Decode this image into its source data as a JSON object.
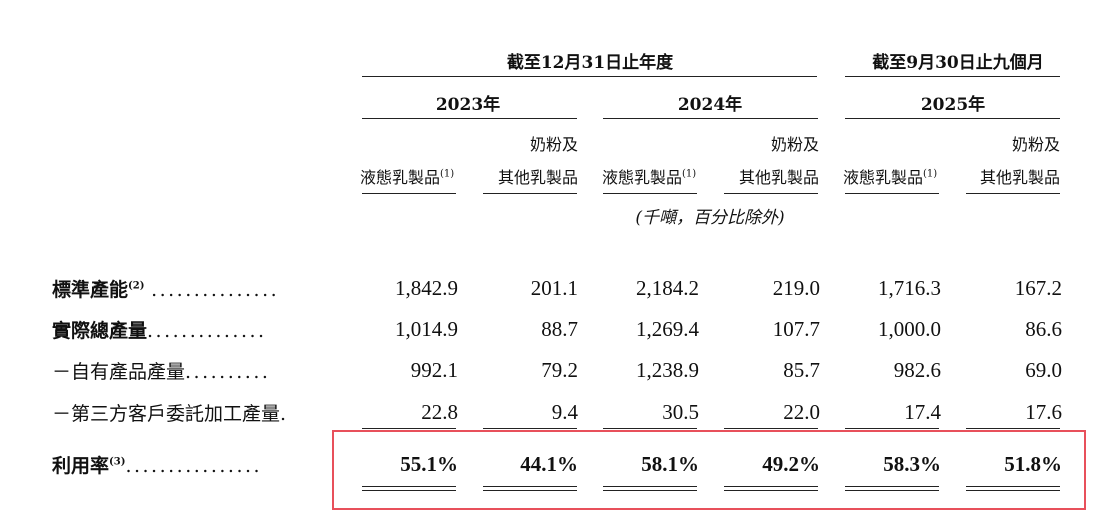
{
  "header": {
    "period_year": "截至12月31日止年度",
    "period_nine_months": "截至9月30日止九個月",
    "years": [
      "2023年",
      "2024年",
      "2025年"
    ],
    "col_liquid_label": "液態乳製品",
    "col_liquid_sup": "(1)",
    "col_powder_line1": "奶粉及",
    "col_powder_line2": "其他乳製品",
    "unit_note": "(千噸，百分比除外)"
  },
  "rows": [
    {
      "label": "標準產能",
      "sup": "(2)",
      "leader": "...............",
      "bold": true,
      "values": [
        "1,842.9",
        "201.1",
        "2,184.2",
        "219.0",
        "1,716.3",
        "167.2"
      ]
    },
    {
      "label": "實際總產量",
      "sup": "",
      "leader": "..............",
      "bold": true,
      "values": [
        "1,014.9",
        "88.7",
        "1,269.4",
        "107.7",
        "1,000.0",
        "86.6"
      ]
    },
    {
      "label": "－自有產品產量",
      "sup": "",
      "leader": "..........",
      "bold": false,
      "values": [
        "992.1",
        "79.2",
        "1,238.9",
        "85.7",
        "982.6",
        "69.0"
      ]
    },
    {
      "label": "－第三方客戶委託加工產量",
      "sup": "",
      "leader": ".",
      "bold": false,
      "values": [
        "22.8",
        "9.4",
        "30.5",
        "22.0",
        "17.4",
        "17.6"
      ]
    },
    {
      "label": "利用率",
      "sup": "(3)",
      "leader": "................",
      "bold": true,
      "values": [
        "55.1%",
        "44.1%",
        "58.1%",
        "49.2%",
        "58.3%",
        "51.8%"
      ]
    }
  ],
  "colors": {
    "highlight_border": "#e8505b",
    "text": "#111111"
  }
}
